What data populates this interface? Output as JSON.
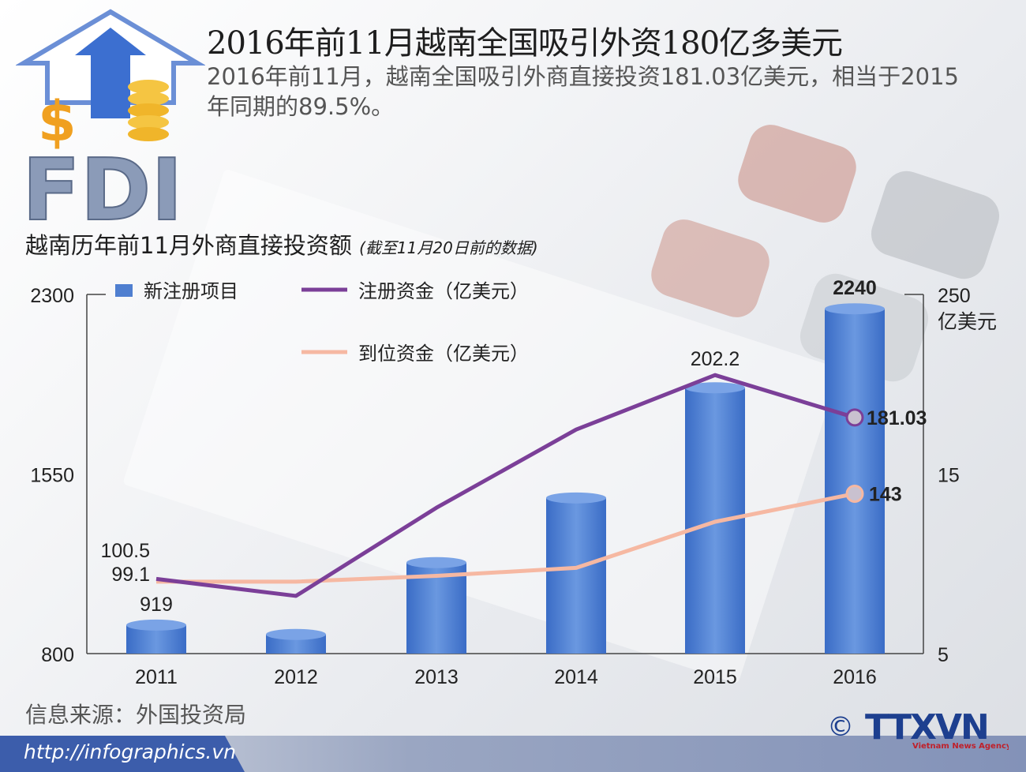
{
  "header": {
    "title": "2016年前11月越南全国吸引外资180亿多美元",
    "description": "2016年前11月，越南全国吸引外商直接投资181.03亿美元，相当于2015年同期的89.5%。",
    "logo_text": "FDI"
  },
  "chart_heading": {
    "title": "越南历年前11月外商直接投资额",
    "note": "(截至11月20日前的数据)"
  },
  "chart_data": {
    "type": "bar",
    "categories": [
      "2011",
      "2012",
      "2013",
      "2014",
      "2015",
      "2016"
    ],
    "left_axis": {
      "ticks": [
        "2300",
        "1550",
        "800"
      ],
      "ylim": [
        800,
        2300
      ]
    },
    "right_axis": {
      "ticks": [
        "250",
        "15",
        "5"
      ],
      "unit": "亿美元"
    },
    "legend": {
      "bars": "新注册项目",
      "line1": "注册资金（亿美元）",
      "line2": "到位资金（亿美元）"
    },
    "series": [
      {
        "name": "新注册项目",
        "kind": "bar",
        "axis": "left",
        "values": [
          919,
          880,
          1180,
          1450,
          1910,
          2240
        ],
        "labels": [
          "919",
          "",
          "",
          "",
          "",
          "2240"
        ],
        "color": "#4f7fd0"
      },
      {
        "name": "注册资金（亿美元）",
        "kind": "line",
        "axis": "right",
        "values": [
          100.5,
          92,
          136,
          175,
          202.2,
          181.03
        ],
        "labels": [
          "100.5",
          "",
          "",
          "",
          "202.2",
          "181.03"
        ],
        "color": "#7b3f98"
      },
      {
        "name": "到位资金（亿美元）",
        "kind": "line",
        "axis": "right",
        "values": [
          99.1,
          99.1,
          102,
          106,
          129,
          143
        ],
        "labels": [
          "99.1",
          "",
          "",
          "",
          "",
          "143"
        ],
        "color": "#f6b8a2"
      }
    ]
  },
  "footer": {
    "source": "信息来源：外国投资局",
    "url": "http://infographics.vn",
    "agency": "TTXVN",
    "agency_sub": "Vietnam News Agency",
    "copyright": "©"
  }
}
